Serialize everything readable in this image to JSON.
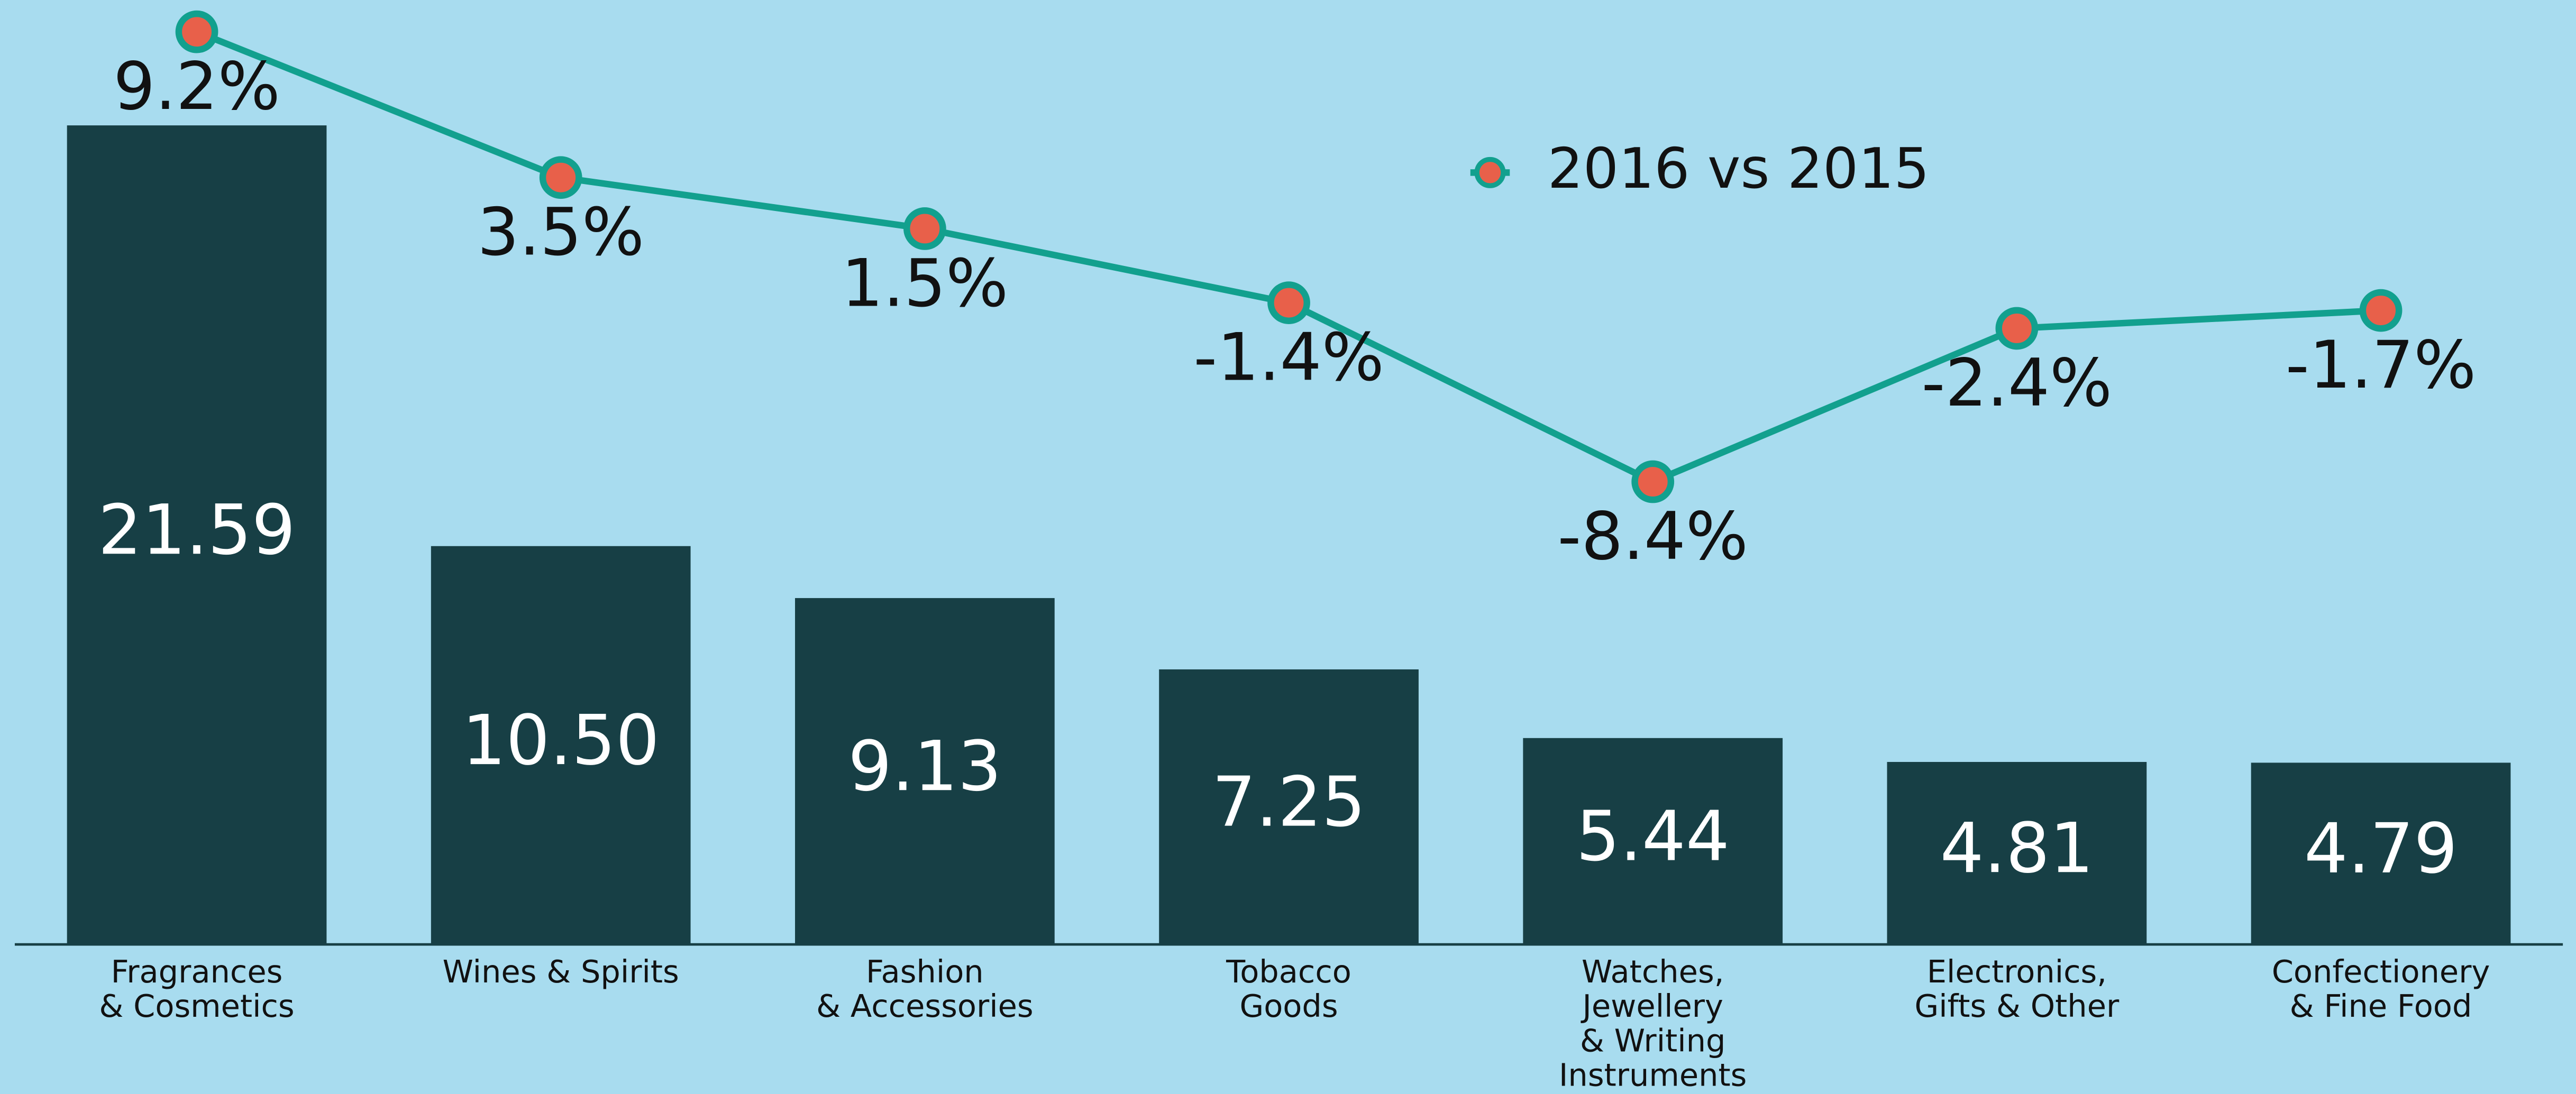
{
  "chart_data": {
    "type": "bar",
    "categories": [
      "Fragrances\n& Cosmetics",
      "Wines & Spirits",
      "Fashion\n& Accessories",
      "Tobacco\nGoods",
      "Watches,\nJewellery\n& Writing\nInstruments",
      "Electronics,\nGifts & Other",
      "Confectionery\n& Fine Food"
    ],
    "series": [
      {
        "type": "bar",
        "color": "#173f45",
        "values": [
          21.59,
          10.5,
          9.13,
          7.25,
          5.44,
          4.81,
          4.79
        ],
        "value_labels": [
          "21.59",
          "10.50",
          "9.13",
          "7.25",
          "5.44",
          "4.81",
          "4.79"
        ]
      },
      {
        "type": "line",
        "name": "2016 vs 2015",
        "axis": "y2",
        "color": "#12a08e",
        "marker_color": "#e8604a",
        "values": [
          9.2,
          3.5,
          1.5,
          -1.4,
          -8.4,
          -2.4,
          -1.7
        ],
        "value_labels": [
          "9.2%",
          "3.5%",
          "1.5%",
          "-1.4%",
          "-8.4%",
          "-2.4%",
          "-1.7%"
        ]
      }
    ],
    "ylim": [
      0,
      25
    ],
    "y2lim": [
      -26.5,
      10.6
    ],
    "grid": false,
    "legend": "top"
  }
}
